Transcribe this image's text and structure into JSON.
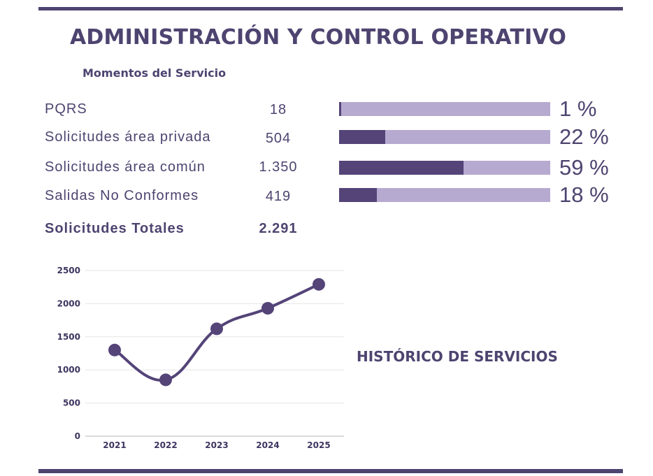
{
  "header": {
    "title": "ADMINISTRACIÓN Y CONTROL OPERATIVO",
    "subtitle": "Momentos del Servicio"
  },
  "rows": [
    {
      "label": "PQRS",
      "value": "18",
      "percent_text": "1 %",
      "percent": 1
    },
    {
      "label": "Solicitudes área privada",
      "value": "504",
      "percent_text": "22 %",
      "percent": 22
    },
    {
      "label": "Solicitudes área común",
      "value": "1.350",
      "percent_text": "59 %",
      "percent": 59
    },
    {
      "label": "Salidas No Conformes",
      "value": "419",
      "percent_text": "18 %",
      "percent": 18
    }
  ],
  "total": {
    "label": "Solicitudes Totales",
    "value": "2.291"
  },
  "colors": {
    "primary": "#4e4470",
    "bar_fill": "#544478",
    "bar_track": "#b7aad0"
  },
  "chart_data": {
    "type": "line",
    "title": "HISTÓRICO DE SERVICIOS",
    "categories": [
      "2021",
      "2022",
      "2023",
      "2024",
      "2025"
    ],
    "values": [
      1300,
      850,
      1620,
      1930,
      2291
    ],
    "yticks": [
      "0",
      "500",
      "1000",
      "1500",
      "2000",
      "2500"
    ],
    "ylim": [
      0,
      2500
    ],
    "grid": true,
    "xlabel": "",
    "ylabel": ""
  }
}
